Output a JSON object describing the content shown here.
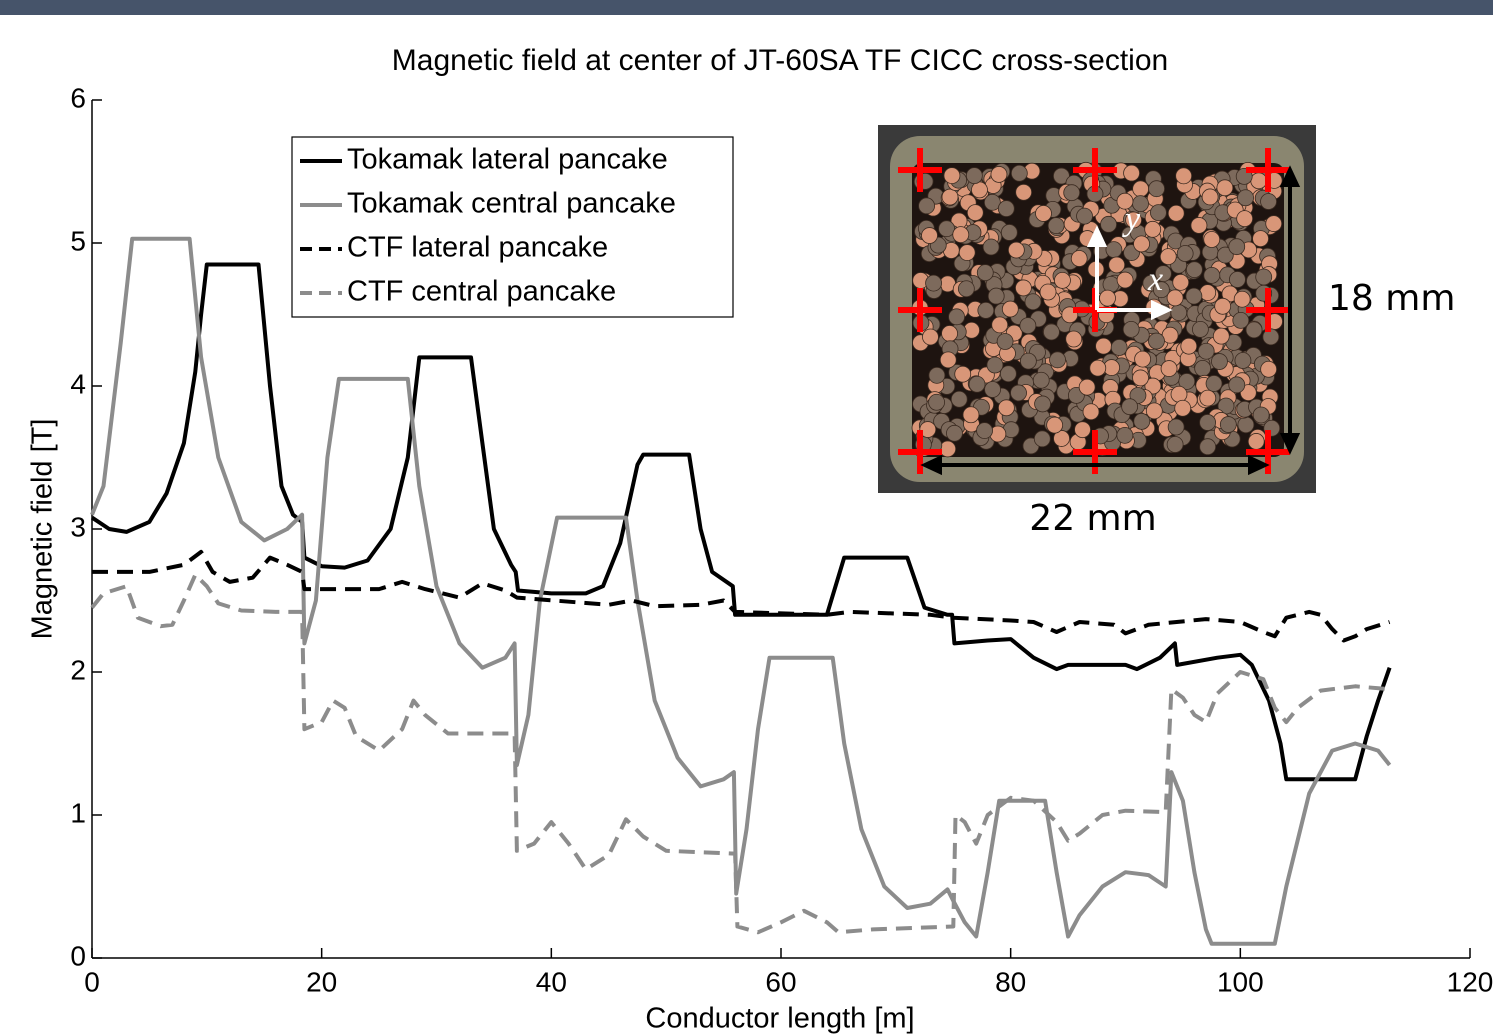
{
  "chart_data": {
    "type": "line",
    "title": "Magnetic field at center of JT-60SA TF CICC cross-section",
    "x_label": "Conductor length [m]",
    "y_label": "Magnetic field [T]",
    "xlim": [
      0,
      120
    ],
    "xticks": [
      0,
      20,
      40,
      60,
      80,
      100,
      120
    ],
    "ylim": [
      0,
      6
    ],
    "yticks": [
      0,
      1,
      2,
      3,
      4,
      5,
      6
    ],
    "grid": false,
    "legend": "upper left",
    "series": [
      {
        "name": "Tokamak lateral pancake",
        "color": "#000000",
        "dashed": false,
        "x": [
          0,
          1.5,
          3,
          5,
          6.5,
          8,
          9,
          9.5,
          10,
          14.5,
          15.5,
          16.5,
          17.5,
          18.3,
          18.5,
          20,
          22,
          24,
          26,
          27.5,
          28.5,
          33,
          34,
          35,
          36.5,
          36.9,
          37.1,
          40,
          43,
          44.5,
          46,
          47.5,
          48,
          52,
          53,
          54,
          55.8,
          56,
          64,
          65.5,
          71,
          72.5,
          74.5,
          74.9,
          75.1,
          78,
          80,
          82,
          84,
          85,
          90,
          91,
          93,
          94.3,
          94.5,
          98,
          100,
          101,
          102.5,
          103.5,
          104,
          110,
          111,
          112,
          113
        ],
        "values": [
          3.08,
          3.0,
          2.98,
          3.05,
          3.25,
          3.6,
          4.1,
          4.5,
          4.85,
          4.85,
          4.0,
          3.3,
          3.1,
          3.05,
          2.8,
          2.74,
          2.73,
          2.78,
          3.0,
          3.5,
          4.2,
          4.2,
          3.6,
          3.0,
          2.75,
          2.7,
          2.57,
          2.55,
          2.55,
          2.6,
          2.9,
          3.45,
          3.52,
          3.52,
          3.0,
          2.7,
          2.6,
          2.4,
          2.4,
          2.8,
          2.8,
          2.45,
          2.4,
          2.4,
          2.2,
          2.22,
          2.23,
          2.1,
          2.02,
          2.05,
          2.05,
          2.02,
          2.1,
          2.2,
          2.05,
          2.1,
          2.12,
          2.05,
          1.8,
          1.5,
          1.25,
          1.25,
          1.55,
          1.8,
          2.03
        ]
      },
      {
        "name": "Tokamak central pancake",
        "color": "#8c8c8c",
        "dashed": false,
        "x": [
          0,
          1,
          2.5,
          3.5,
          8.5,
          9.5,
          11,
          13,
          15,
          17,
          18.3,
          18.5,
          19.5,
          20.5,
          21.5,
          27.5,
          28.5,
          30,
          32,
          34,
          36,
          36.8,
          37,
          38,
          39,
          40.5,
          46.5,
          47.5,
          49,
          51,
          53,
          55,
          55.9,
          56.1,
          57,
          58,
          59,
          64.5,
          65.5,
          67,
          69,
          71,
          73,
          74.5,
          75,
          76,
          77,
          78,
          79,
          83,
          84,
          85,
          86,
          88,
          90,
          92,
          93.5,
          94,
          95,
          96,
          97,
          97.5,
          103,
          104,
          106,
          108,
          110,
          112,
          113
        ],
        "values": [
          3.1,
          3.3,
          4.3,
          5.03,
          5.03,
          4.2,
          3.5,
          3.05,
          2.92,
          3.0,
          3.1,
          2.2,
          2.5,
          3.5,
          4.05,
          4.05,
          3.3,
          2.6,
          2.2,
          2.03,
          2.1,
          2.2,
          1.35,
          1.7,
          2.5,
          3.08,
          3.08,
          2.5,
          1.8,
          1.4,
          1.2,
          1.25,
          1.3,
          0.45,
          0.9,
          1.6,
          2.1,
          2.1,
          1.5,
          0.9,
          0.5,
          0.35,
          0.38,
          0.48,
          0.4,
          0.25,
          0.15,
          0.6,
          1.1,
          1.1,
          0.6,
          0.15,
          0.3,
          0.5,
          0.6,
          0.58,
          0.5,
          1.3,
          1.1,
          0.6,
          0.2,
          0.1,
          0.1,
          0.5,
          1.15,
          1.45,
          1.5,
          1.45,
          1.35
        ]
      },
      {
        "name": "CTF lateral pancake",
        "color": "#000000",
        "dashed": true,
        "x": [
          0,
          5,
          8,
          9.5,
          10.5,
          12,
          14,
          15.5,
          17,
          18.3,
          18.5,
          25,
          27,
          29,
          32,
          34,
          36,
          37,
          45,
          47,
          49,
          53,
          55,
          56,
          64,
          66,
          73,
          75,
          80,
          82,
          84,
          86,
          89,
          90,
          92,
          97,
          100,
          102,
          103,
          104,
          106,
          107,
          108,
          109,
          110,
          111,
          113
        ],
        "values": [
          2.7,
          2.7,
          2.75,
          2.84,
          2.7,
          2.63,
          2.66,
          2.8,
          2.75,
          2.7,
          2.58,
          2.58,
          2.63,
          2.58,
          2.52,
          2.62,
          2.57,
          2.52,
          2.47,
          2.5,
          2.46,
          2.47,
          2.5,
          2.42,
          2.4,
          2.42,
          2.4,
          2.38,
          2.36,
          2.35,
          2.28,
          2.35,
          2.33,
          2.27,
          2.33,
          2.37,
          2.35,
          2.28,
          2.25,
          2.38,
          2.42,
          2.4,
          2.3,
          2.22,
          2.25,
          2.3,
          2.35
        ]
      },
      {
        "name": "CTF central pancake",
        "color": "#8c8c8c",
        "dashed": true,
        "x": [
          0,
          1,
          3,
          4,
          6,
          7,
          8,
          9,
          10,
          11,
          13,
          16,
          18.3,
          18.5,
          20,
          21,
          22,
          23,
          25,
          27,
          28,
          29,
          31,
          35,
          36.8,
          37,
          38.5,
          40,
          41.5,
          43,
          45,
          46.5,
          48,
          50,
          56,
          56.2,
          58,
          60,
          62,
          64,
          65,
          68,
          75,
          75.2,
          76,
          77,
          78,
          80,
          82,
          84,
          85,
          86,
          88,
          90,
          93.5,
          94,
          95,
          96,
          97,
          98,
          100,
          102,
          103,
          104,
          105,
          107,
          110,
          113
        ],
        "values": [
          2.45,
          2.55,
          2.6,
          2.38,
          2.32,
          2.33,
          2.5,
          2.68,
          2.6,
          2.48,
          2.43,
          2.42,
          2.42,
          1.6,
          1.65,
          1.8,
          1.75,
          1.55,
          1.45,
          1.6,
          1.8,
          1.7,
          1.57,
          1.57,
          1.57,
          0.75,
          0.8,
          0.95,
          0.8,
          0.62,
          0.72,
          0.97,
          0.85,
          0.75,
          0.73,
          0.22,
          0.18,
          0.25,
          0.33,
          0.25,
          0.18,
          0.2,
          0.22,
          1.0,
          0.95,
          0.8,
          1.0,
          1.12,
          1.1,
          0.95,
          0.82,
          0.87,
          1.0,
          1.03,
          1.02,
          1.88,
          1.82,
          1.7,
          1.65,
          1.85,
          2.0,
          1.95,
          1.75,
          1.65,
          1.75,
          1.87,
          1.9,
          1.88
        ]
      }
    ],
    "inset": {
      "width_label": "22 mm",
      "height_label": "18 mm",
      "x_axis": "x",
      "y_axis": "y"
    }
  }
}
